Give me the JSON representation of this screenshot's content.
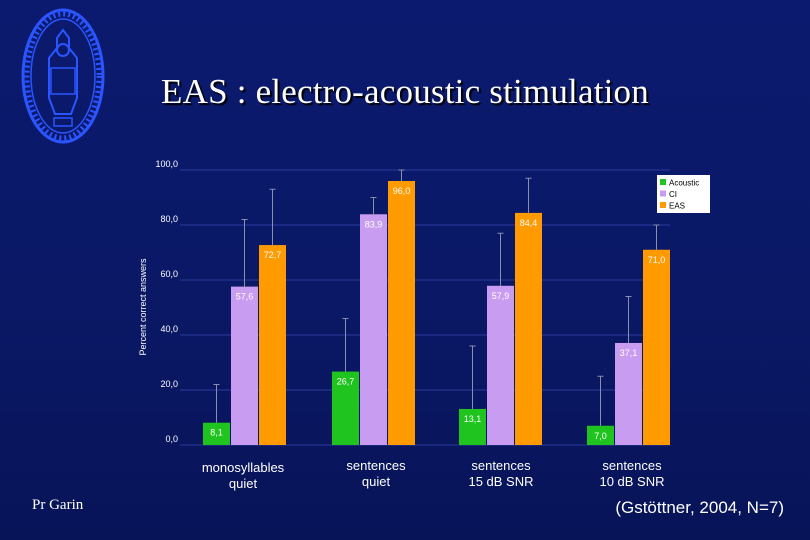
{
  "slide": {
    "title": "EAS : electro-acoustic stimulation",
    "presenter": "Pr Garin",
    "citation": "(Gstöttner, 2004, N=7)",
    "logo_icon": "university-seal-icon"
  },
  "chart_data": {
    "type": "bar",
    "categories": [
      "monosyllables\nquiet",
      "sentences\nquiet",
      "sentences\n15 dB SNR",
      "sentences\n10 dB SNR"
    ],
    "series": [
      {
        "name": "Acoustic",
        "color": "#1fc41f",
        "values": [
          8.1,
          26.7,
          13.1,
          7.0
        ],
        "labels": [
          "8,1",
          "26,7",
          "13,1",
          "7,0"
        ]
      },
      {
        "name": "CI",
        "color": "#c89cf0",
        "values": [
          57.6,
          83.9,
          57.9,
          37.1
        ],
        "labels": [
          "57,6",
          "83,9",
          "57,9",
          "37,1"
        ]
      },
      {
        "name": "EAS",
        "color": "#ff9a00",
        "values": [
          72.7,
          96.0,
          84.4,
          71.0
        ],
        "labels": [
          "72,7",
          "96,0",
          "84,4",
          "71,0"
        ]
      }
    ],
    "error_high": [
      [
        22,
        46,
        36,
        25
      ],
      [
        82,
        90,
        77,
        54
      ],
      [
        93,
        100,
        97,
        80
      ]
    ],
    "ylabel": "Percent correct answers",
    "ylim": [
      0,
      100
    ],
    "yticks": [
      0,
      20,
      40,
      60,
      80,
      100
    ],
    "ytick_labels": [
      "0,0",
      "20,0",
      "40,0",
      "60,0",
      "80,0",
      "100,0"
    ],
    "legend_position": "top-right",
    "grid": true
  }
}
